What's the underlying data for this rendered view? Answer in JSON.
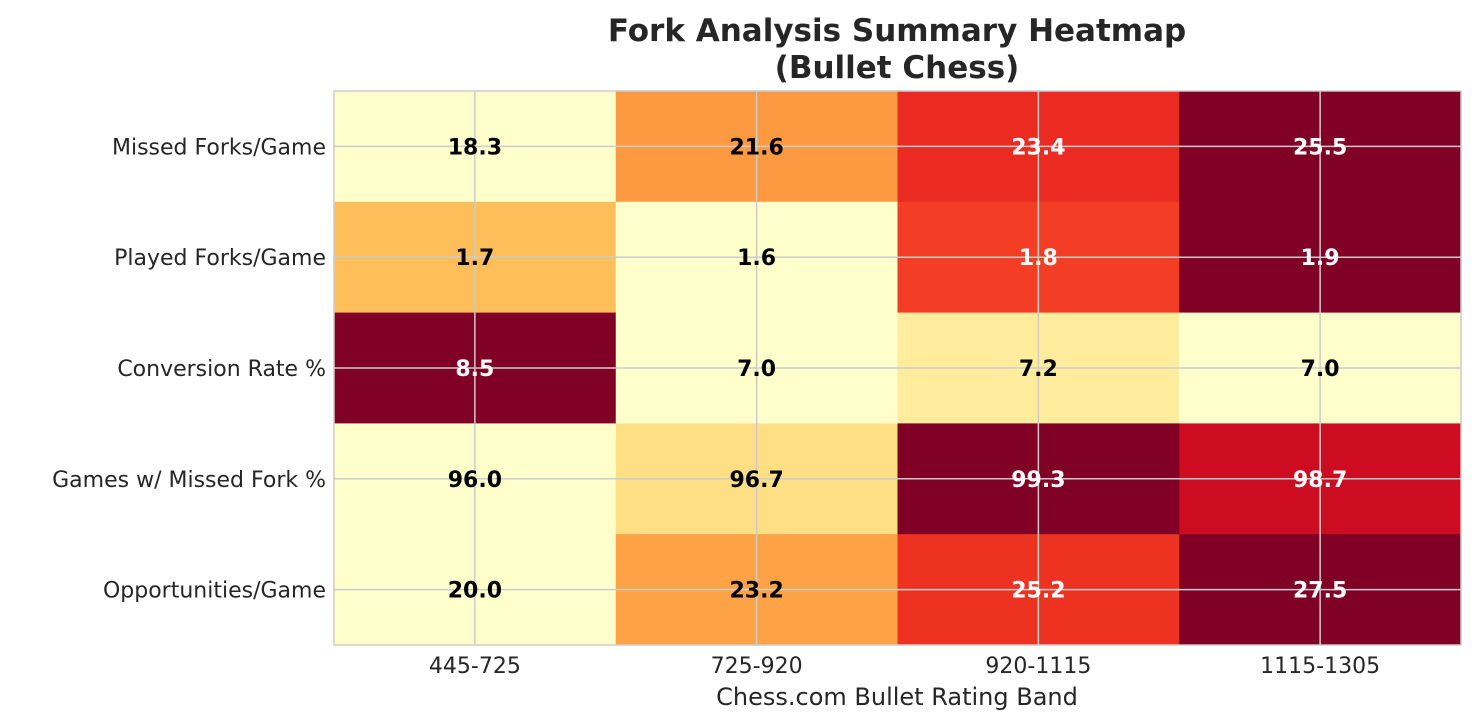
{
  "chart_data": {
    "type": "heatmap",
    "title_lines": [
      "Fork Analysis Summary Heatmap",
      "(Bullet Chess)"
    ],
    "xlabel": "Chess.com Bullet Rating Band",
    "ylabel": "",
    "x_categories": [
      "445-725",
      "725-920",
      "920-1115",
      "1115-1305"
    ],
    "y_categories": [
      "Missed Forks/Game",
      "Played Forks/Game",
      "Conversion Rate %",
      "Games w/ Missed Fork %",
      "Opportunities/Game"
    ],
    "values": [
      [
        18.3,
        21.6,
        23.4,
        25.5
      ],
      [
        1.7,
        1.6,
        1.8,
        1.9
      ],
      [
        8.5,
        7.0,
        7.2,
        7.0
      ],
      [
        96.0,
        96.7,
        99.3,
        98.7
      ],
      [
        20.0,
        23.2,
        25.2,
        27.5
      ]
    ],
    "labels": [
      [
        "18.3",
        "21.6",
        "23.4",
        "25.5"
      ],
      [
        "1.7",
        "1.6",
        "1.8",
        "1.9"
      ],
      [
        "8.5",
        "7.0",
        "7.2",
        "7.0"
      ],
      [
        "96.0",
        "96.7",
        "99.3",
        "98.7"
      ],
      [
        "20.0",
        "23.2",
        "25.2",
        "27.5"
      ]
    ],
    "colormap": "YlOrRd",
    "normalization": "per-row",
    "grid": true,
    "colorbar": false
  }
}
